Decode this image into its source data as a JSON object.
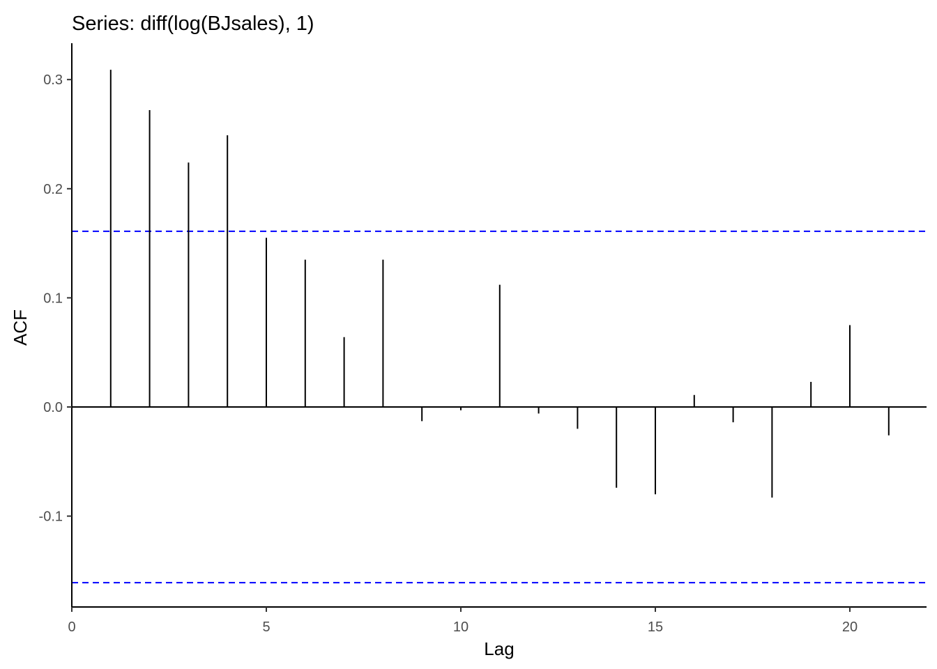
{
  "chart_data": {
    "type": "bar",
    "title": "Series: diff(log(BJsales), 1)",
    "xlabel": "Lag",
    "ylabel": "ACF",
    "xlim": [
      0,
      22
    ],
    "ylim": [
      -0.18,
      0.33
    ],
    "xticks": [
      0,
      5,
      10,
      15,
      20
    ],
    "xtick_labels": [
      "0",
      "5",
      "10",
      "15",
      "20"
    ],
    "yticks": [
      -0.1,
      0.0,
      0.1,
      0.2,
      0.3
    ],
    "ytick_labels": [
      "-0.1",
      "0.0",
      "0.1",
      "0.2",
      "0.3"
    ],
    "x": [
      1,
      2,
      3,
      4,
      5,
      6,
      7,
      8,
      9,
      10,
      11,
      12,
      13,
      14,
      15,
      16,
      17,
      18,
      19,
      20,
      21
    ],
    "values": [
      0.309,
      0.272,
      0.224,
      0.249,
      0.155,
      0.135,
      0.064,
      0.135,
      -0.013,
      -0.003,
      0.112,
      -0.006,
      -0.02,
      -0.074,
      -0.08,
      0.011,
      -0.014,
      -0.083,
      0.023,
      0.075,
      -0.026
    ],
    "confidence_bound": 0.161,
    "grid": false,
    "colors": {
      "spike": "#000000",
      "bound": "#0000ff",
      "axis": "#000000",
      "tick_label": "#4d4d4d"
    }
  }
}
